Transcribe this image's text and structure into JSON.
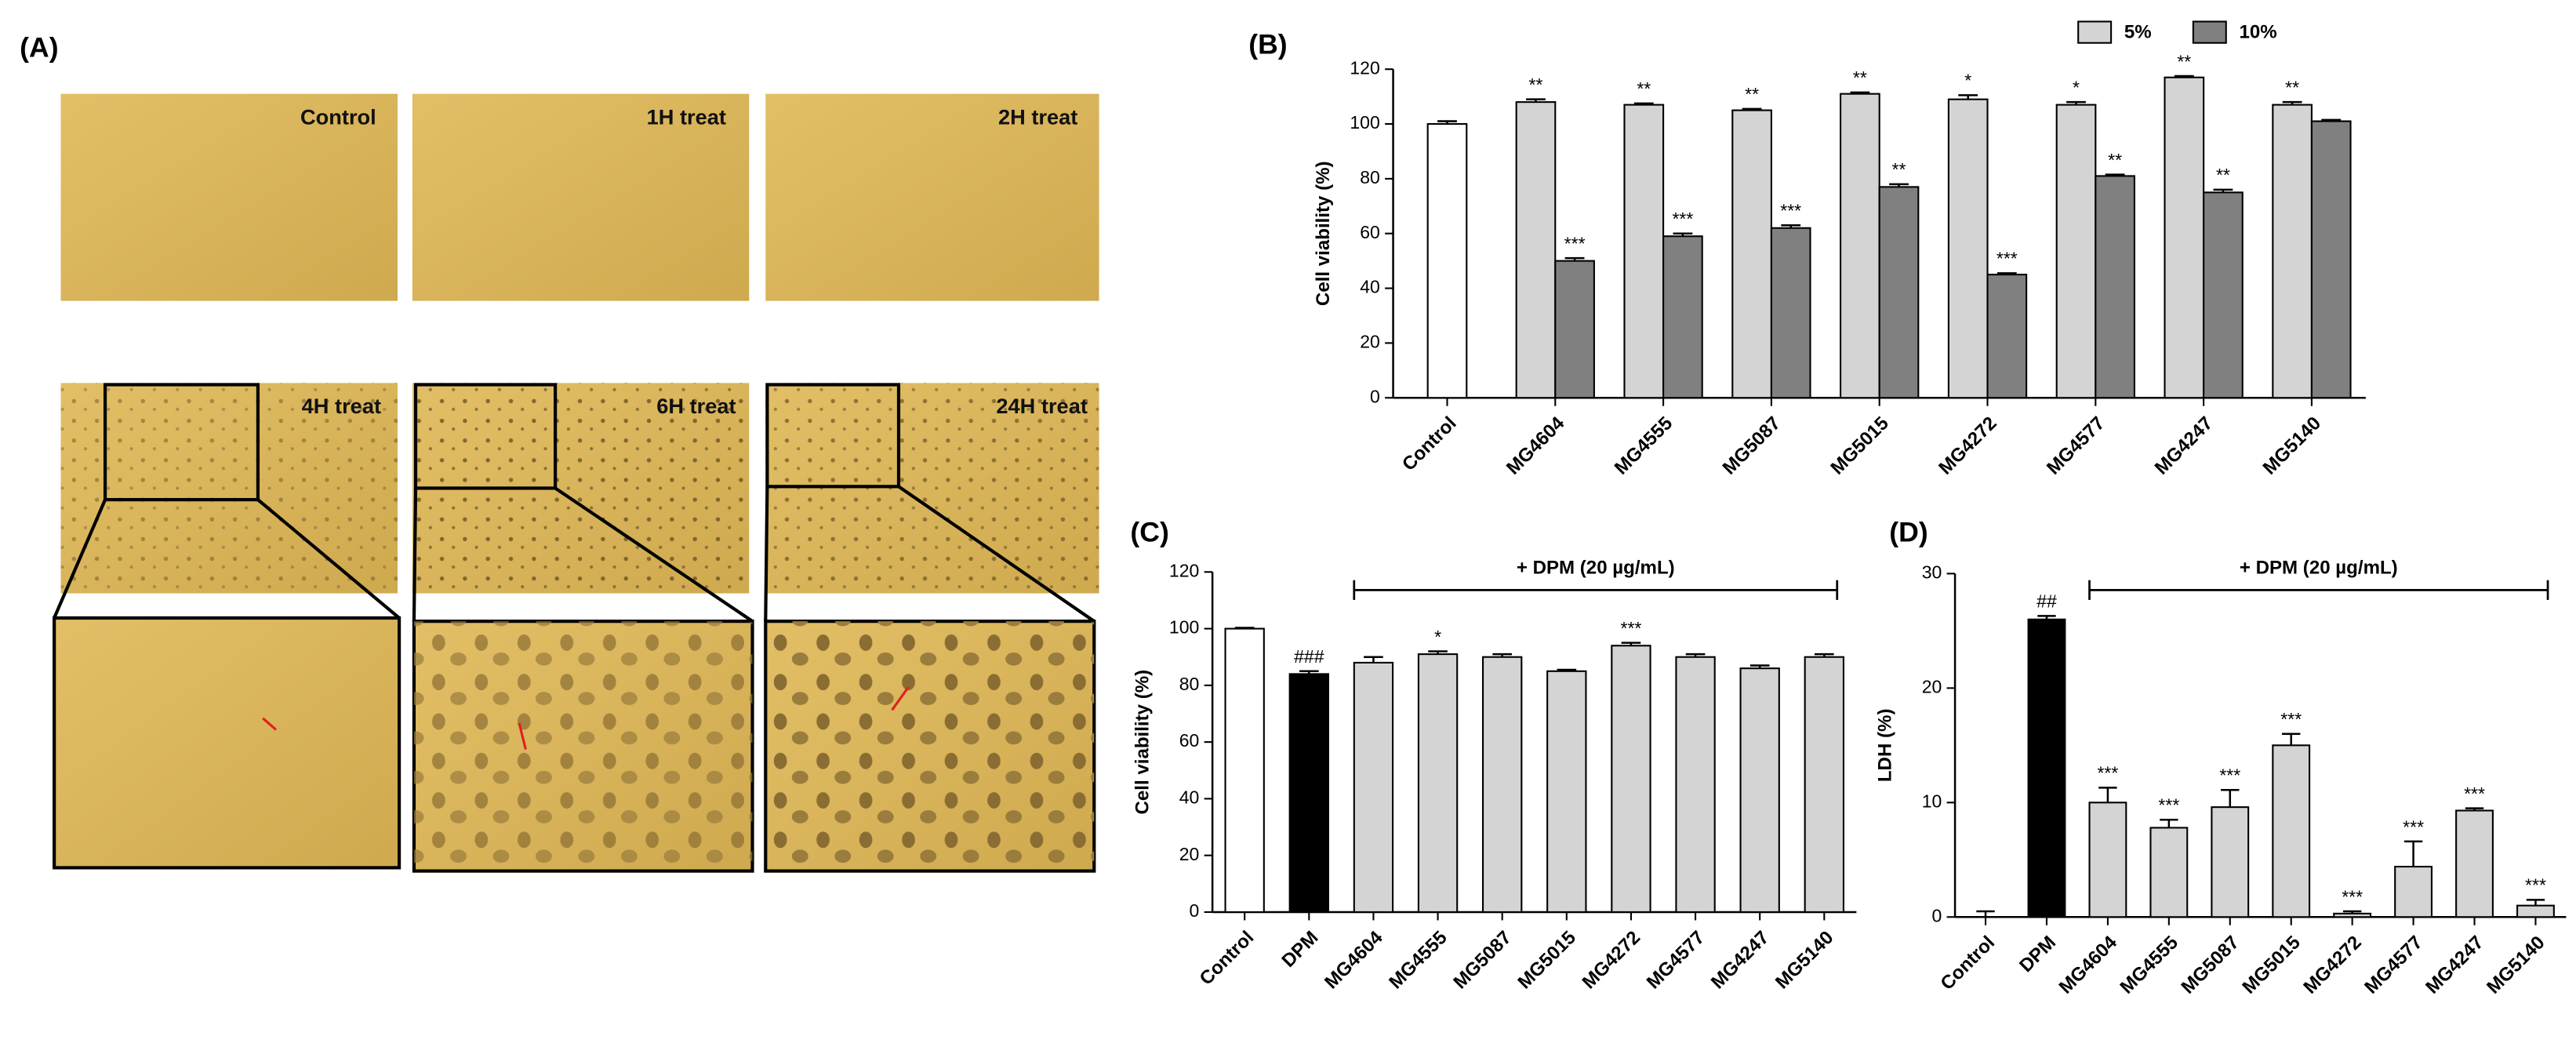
{
  "micrographs": {
    "panel": "(A)",
    "labels": [
      "Control",
      "1H treat",
      "2H treat",
      "4H treat",
      "6H treat",
      "24H treat"
    ]
  },
  "chart_data": [
    {
      "type": "bar",
      "panel": "(B)",
      "y_label": "Cell viability (%)",
      "categories": [
        "Control",
        "MG4604",
        "MG4555",
        "MG5087",
        "MG5015",
        "MG4272",
        "MG4577",
        "MG4247",
        "MG5140"
      ],
      "series": [
        {
          "name": "5%",
          "color": "#d4d4d4",
          "colors": [
            "#ffffff",
            "#d4d4d4",
            "#d4d4d4",
            "#d4d4d4",
            "#d4d4d4",
            "#d4d4d4",
            "#d4d4d4",
            "#d4d4d4",
            "#d4d4d4"
          ],
          "values": [
            100,
            108,
            107,
            105,
            111,
            109,
            107,
            117,
            107
          ],
          "errors": [
            1,
            1,
            0.5,
            0.5,
            0.5,
            1.5,
            1,
            0.5,
            1
          ],
          "annotations": [
            null,
            "**",
            "**",
            "**",
            "**",
            "*",
            "*",
            "**",
            "**"
          ]
        },
        {
          "name": "10%",
          "color": "#808080",
          "values": [
            null,
            50,
            59,
            62,
            77,
            45,
            81,
            75,
            101
          ],
          "errors": [
            null,
            1,
            1,
            1,
            1,
            0.5,
            0.5,
            1,
            0.5
          ],
          "annotations": [
            null,
            "***",
            "***",
            "***",
            "**",
            "***",
            "**",
            "**",
            null
          ]
        }
      ],
      "ylim": [
        0,
        120
      ],
      "yticks": [
        0,
        20,
        40,
        60,
        80,
        100,
        120
      ],
      "legend": "top-right"
    },
    {
      "type": "bar",
      "panel": "(C)",
      "y_label": "Cell viability (%)",
      "bracket_label": "+ DPM (20 µg/mL)",
      "categories": [
        "Control",
        "DPM",
        "MG4604",
        "MG4555",
        "MG5087",
        "MG5015",
        "MG4272",
        "MG4577",
        "MG4247",
        "MG5140"
      ],
      "values": [
        100,
        84,
        88,
        91,
        90,
        85,
        94,
        90,
        86,
        90
      ],
      "errors": [
        0.3,
        1,
        2,
        1,
        1,
        0.5,
        1,
        1,
        1,
        1
      ],
      "colors": [
        "#ffffff",
        "#000000",
        "#d4d4d4",
        "#d4d4d4",
        "#d4d4d4",
        "#d4d4d4",
        "#d4d4d4",
        "#d4d4d4",
        "#d4d4d4",
        "#d4d4d4"
      ],
      "annotations": [
        null,
        "###",
        null,
        "*",
        null,
        null,
        "***",
        null,
        null,
        null
      ],
      "ylim": [
        0,
        120
      ],
      "yticks": [
        0,
        20,
        40,
        60,
        80,
        100,
        120
      ]
    },
    {
      "type": "bar",
      "panel": "(D)",
      "y_label": "LDH (%)",
      "bracket_label": "+ DPM (20 µg/mL)",
      "categories": [
        "Control",
        "DPM",
        "MG4604",
        "MG4555",
        "MG5087",
        "MG5015",
        "MG4272",
        "MG4577",
        "MG4247",
        "MG5140"
      ],
      "values": [
        0,
        26,
        10,
        7.8,
        9.6,
        15,
        0.3,
        4.4,
        9.3,
        1
      ],
      "errors": [
        0.5,
        0.3,
        1.3,
        0.7,
        1.5,
        1,
        0.2,
        2.2,
        0.2,
        0.5
      ],
      "colors": [
        "#ffffff",
        "#000000",
        "#d4d4d4",
        "#d4d4d4",
        "#d4d4d4",
        "#d4d4d4",
        "#d4d4d4",
        "#d4d4d4",
        "#d4d4d4",
        "#d4d4d4"
      ],
      "annotations": [
        null,
        "##",
        "***",
        "***",
        "***",
        "***",
        "***",
        "***",
        "***",
        "***"
      ],
      "ylim": [
        0,
        30
      ],
      "yticks": [
        0,
        10,
        20,
        30
      ]
    }
  ]
}
